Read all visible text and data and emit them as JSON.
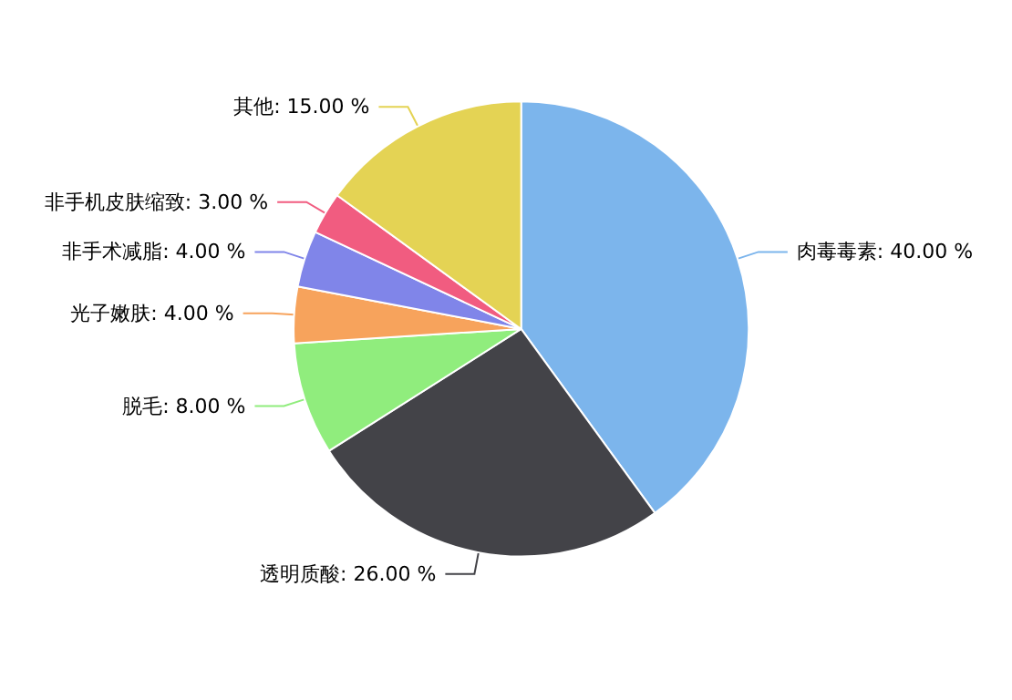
{
  "chart_data": {
    "type": "pie",
    "categories": [
      "肉毒毒素",
      "透明质酸",
      "脱毛",
      "光子嫩肤",
      "非手术减脂",
      "非手机皮肤缩致",
      "其他"
    ],
    "values": [
      40,
      26,
      8,
      4,
      4,
      3,
      15
    ],
    "value_labels": [
      "40.00 %",
      "26.00 %",
      "8.00 %",
      "4.00 %",
      "4.00 %",
      "3.00 %",
      "15.00 %"
    ],
    "colors": [
      "#7cb5ec",
      "#434348",
      "#90ed7d",
      "#f7a35c",
      "#8085e9",
      "#f15c80",
      "#e4d354"
    ],
    "legend": false
  }
}
